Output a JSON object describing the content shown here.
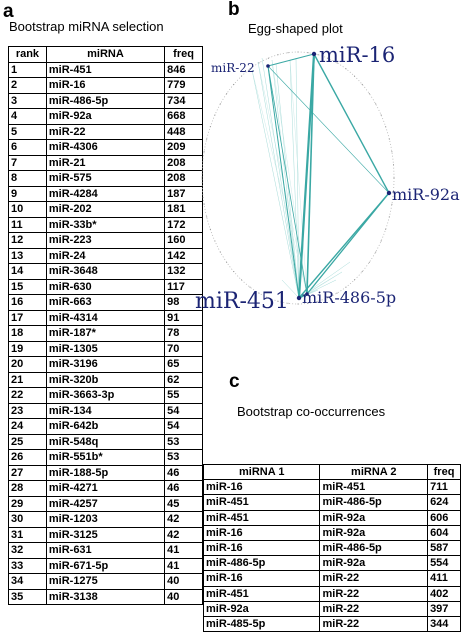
{
  "panel_a": {
    "letter": "a",
    "title": "Bootstrap  miRNA selection",
    "headers": [
      "rank",
      "miRNA",
      "freq"
    ],
    "rows": [
      [
        "1",
        "miR-451",
        "846"
      ],
      [
        "2",
        "miR-16",
        "779"
      ],
      [
        "3",
        "miR-486-5p",
        "734"
      ],
      [
        "4",
        "miR-92a",
        "668"
      ],
      [
        "5",
        "miR-22",
        "448"
      ],
      [
        "6",
        "miR-4306",
        "209"
      ],
      [
        "7",
        "miR-21",
        "208"
      ],
      [
        "8",
        "miR-575",
        "208"
      ],
      [
        "9",
        "miR-4284",
        "187"
      ],
      [
        "10",
        "miR-202",
        "181"
      ],
      [
        "11",
        "miR-33b*",
        "172"
      ],
      [
        "12",
        "miR-223",
        "160"
      ],
      [
        "13",
        "miR-24",
        "142"
      ],
      [
        "14",
        "miR-3648",
        "132"
      ],
      [
        "15",
        "miR-630",
        "117"
      ],
      [
        "16",
        "miR-663",
        "98"
      ],
      [
        "17",
        "miR-4314",
        "91"
      ],
      [
        "18",
        "miR-187*",
        "78"
      ],
      [
        "19",
        "miR-1305",
        "70"
      ],
      [
        "20",
        "miR-3196",
        "65"
      ],
      [
        "21",
        "miR-320b",
        "62"
      ],
      [
        "22",
        "miR-3663-3p",
        "55"
      ],
      [
        "23",
        "miR-134",
        "54"
      ],
      [
        "24",
        "miR-642b",
        "54"
      ],
      [
        "25",
        "miR-548q",
        "53"
      ],
      [
        "26",
        "miR-551b*",
        "53"
      ],
      [
        "27",
        "miR-188-5p",
        "46"
      ],
      [
        "28",
        "miR-4271",
        "46"
      ],
      [
        "29",
        "miR-4257",
        "45"
      ],
      [
        "30",
        "miR-1203",
        "42"
      ],
      [
        "31",
        "miR-3125",
        "42"
      ],
      [
        "32",
        "miR-631",
        "41"
      ],
      [
        "33",
        "miR-671-5p",
        "41"
      ],
      [
        "34",
        "miR-1275",
        "40"
      ],
      [
        "35",
        "miR-3138",
        "40"
      ]
    ]
  },
  "panel_b": {
    "letter": "b",
    "title": "Egg-shaped plot",
    "nodes": [
      {
        "label": "miR-16",
        "size": "large"
      },
      {
        "label": "miR-22",
        "size": "small"
      },
      {
        "label": "miR-92a",
        "size": "medium"
      },
      {
        "label": "miR-451",
        "size": "large"
      },
      {
        "label": "miR-486-5p",
        "size": "medium"
      }
    ],
    "edge_color": "#3aa8a4"
  },
  "panel_c": {
    "letter": "c",
    "title": "Bootstrap co-occurrences",
    "headers": [
      "miRNA 1",
      "miRNA 2",
      "freq"
    ],
    "rows": [
      [
        "miR-16",
        "miR-451",
        "711"
      ],
      [
        "miR-451",
        "miR-486-5p",
        "624"
      ],
      [
        "miR-451",
        "miR-92a",
        "606"
      ],
      [
        "miR-16",
        "miR-92a",
        "604"
      ],
      [
        "miR-16",
        "miR-486-5p",
        "587"
      ],
      [
        "miR-486-5p",
        "miR-92a",
        "554"
      ],
      [
        "miR-16",
        "miR-22",
        "411"
      ],
      [
        "miR-451",
        "miR-22",
        "402"
      ],
      [
        "miR-92a",
        "miR-22",
        "397"
      ],
      [
        "miR-485-5p",
        "miR-22",
        "344"
      ]
    ]
  }
}
